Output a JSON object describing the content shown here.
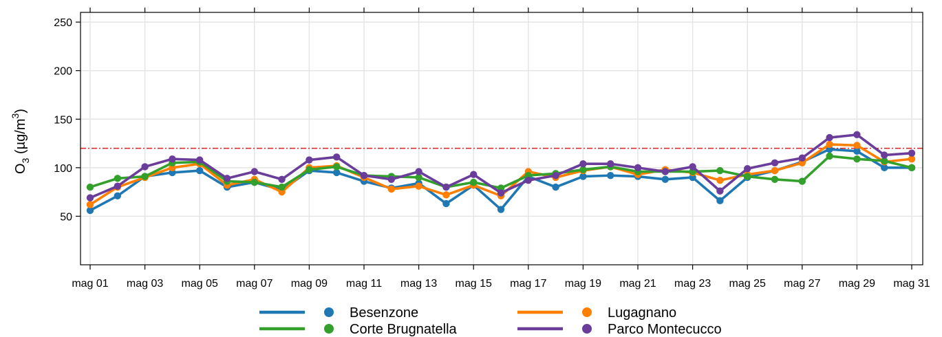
{
  "chart_data": {
    "type": "line",
    "title": "",
    "xlabel": "",
    "ylabel": {
      "prefix": "O",
      "sub": "3",
      "unit_start": " (µg/m",
      "sup": "3",
      "unit_end": ")"
    },
    "ylim": [
      0,
      260
    ],
    "yticks": [
      50,
      100,
      150,
      200,
      250
    ],
    "x": [
      "mag 01",
      "mag 02",
      "mag 03",
      "mag 04",
      "mag 05",
      "mag 06",
      "mag 07",
      "mag 08",
      "mag 09",
      "mag 10",
      "mag 11",
      "mag 12",
      "mag 13",
      "mag 14",
      "mag 15",
      "mag 16",
      "mag 17",
      "mag 18",
      "mag 19",
      "mag 20",
      "mag 21",
      "mag 22",
      "mag 23",
      "mag 24",
      "mag 25",
      "mag 26",
      "mag 27",
      "mag 28",
      "mag 29",
      "mag 30",
      "mag 31"
    ],
    "xtick_labels": [
      "mag 01",
      "mag 03",
      "mag 05",
      "mag 07",
      "mag 09",
      "mag 11",
      "mag 13",
      "mag 15",
      "mag 17",
      "mag 19",
      "mag 21",
      "mag 23",
      "mag 25",
      "mag 27",
      "mag 29",
      "mag 31"
    ],
    "threshold": {
      "value": 120,
      "color": "#e41a1c",
      "style": "dash-dot"
    },
    "grid": true,
    "legend_position": "bottom",
    "series": [
      {
        "name": "Besenzone",
        "color": "#1f78b4",
        "values": [
          56,
          71,
          91,
          95,
          97,
          80,
          85,
          77,
          97,
          95,
          86,
          79,
          84,
          63,
          82,
          57,
          91,
          80,
          91,
          92,
          91,
          88,
          90,
          66,
          90,
          97,
          106,
          119,
          117,
          100,
          100
        ]
      },
      {
        "name": "Lugagnano",
        "color": "#ff7f00",
        "values": [
          62,
          80,
          90,
          100,
          104,
          82,
          88,
          75,
          100,
          102,
          90,
          78,
          81,
          72,
          82,
          71,
          96,
          90,
          97,
          101,
          93,
          98,
          95,
          87,
          93,
          97,
          105,
          124,
          123,
          106,
          109
        ]
      },
      {
        "name": "Corte Brugnatella",
        "color": "#33a02c",
        "values": [
          80,
          89,
          91,
          105,
          106,
          86,
          85,
          80,
          98,
          101,
          92,
          91,
          90,
          80,
          85,
          79,
          92,
          94,
          98,
          101,
          96,
          96,
          96,
          97,
          91,
          88,
          86,
          112,
          109,
          107,
          100
        ]
      },
      {
        "name": "Parco Montecucco",
        "color": "#6a3d9a",
        "values": [
          69,
          81,
          101,
          109,
          108,
          89,
          96,
          88,
          108,
          111,
          92,
          88,
          96,
          80,
          93,
          74,
          87,
          92,
          104,
          104,
          100,
          96,
          101,
          76,
          99,
          105,
          110,
          131,
          134,
          113,
          115
        ]
      }
    ]
  }
}
